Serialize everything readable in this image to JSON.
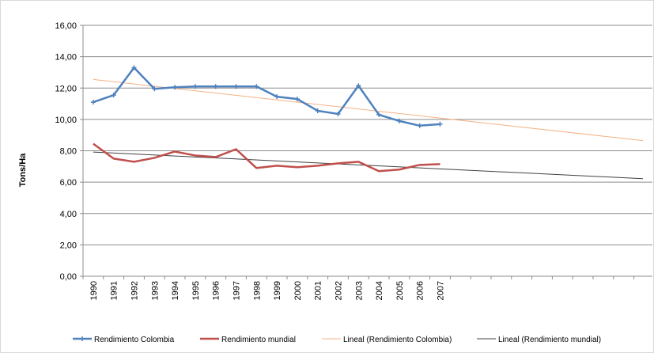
{
  "chart_data": {
    "type": "line",
    "title": "",
    "xlabel": "",
    "ylabel": "Tons/Ha",
    "ylim": [
      0,
      16
    ],
    "yticks": [
      "0,00",
      "2,00",
      "4,00",
      "6,00",
      "8,00",
      "10,00",
      "12,00",
      "14,00",
      "16,00"
    ],
    "categories": [
      "1990",
      "1991",
      "1992",
      "1993",
      "1994",
      "1995",
      "1996",
      "1997",
      "1998",
      "1999",
      "2000",
      "2001",
      "2002",
      "2003",
      "2004",
      "2005",
      "2006",
      "2007"
    ],
    "grid": true,
    "legend_position": "bottom",
    "series": [
      {
        "name": "Rendimiento Colombia",
        "color": "#4f81bd",
        "marker": "plus",
        "values": [
          11.1,
          11.55,
          13.3,
          11.95,
          12.05,
          12.1,
          12.1,
          12.1,
          12.1,
          11.45,
          11.3,
          10.55,
          10.35,
          12.15,
          10.3,
          9.9,
          9.6,
          9.7
        ]
      },
      {
        "name": "Rendimiento mundial",
        "color": "#c0504d",
        "marker": "none",
        "values": [
          8.45,
          7.5,
          7.3,
          7.55,
          7.95,
          7.7,
          7.6,
          8.1,
          6.9,
          7.05,
          6.95,
          7.05,
          7.2,
          7.3,
          6.7,
          6.8,
          7.1,
          7.15
        ]
      },
      {
        "name": "Lineal (Rendimiento Colombia)",
        "color": "#f4b183",
        "type": "trendline",
        "start_value": 12.55,
        "end_value": 8.65
      },
      {
        "name": "Lineal (Rendimiento mundial)",
        "color": "#404040",
        "type": "trendline",
        "start_value": 7.92,
        "end_value": 6.22
      }
    ]
  }
}
